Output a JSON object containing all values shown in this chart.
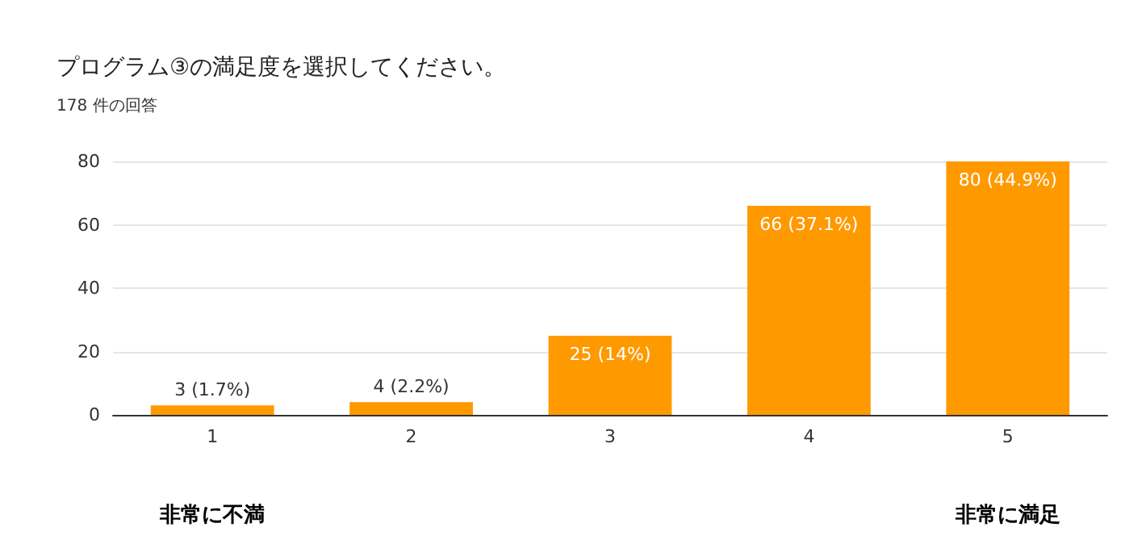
{
  "chart_data": {
    "type": "bar",
    "title": "プログラム③の満足度を選択してください。",
    "subtitle": "178 件の回答",
    "categories": [
      "1",
      "2",
      "3",
      "4",
      "5"
    ],
    "values": [
      3,
      4,
      25,
      66,
      80
    ],
    "value_labels": [
      "3 (1.7%)",
      "4 (2.2%)",
      "25 (14%)",
      "66 (37.1%)",
      "80 (44.9%)"
    ],
    "color": "#ff9900",
    "ylim": [
      0,
      80
    ],
    "yticks": [
      0,
      20,
      40,
      60,
      80
    ],
    "grid": "y",
    "annotations": [
      "非常に不満",
      "非常に満足"
    ]
  }
}
